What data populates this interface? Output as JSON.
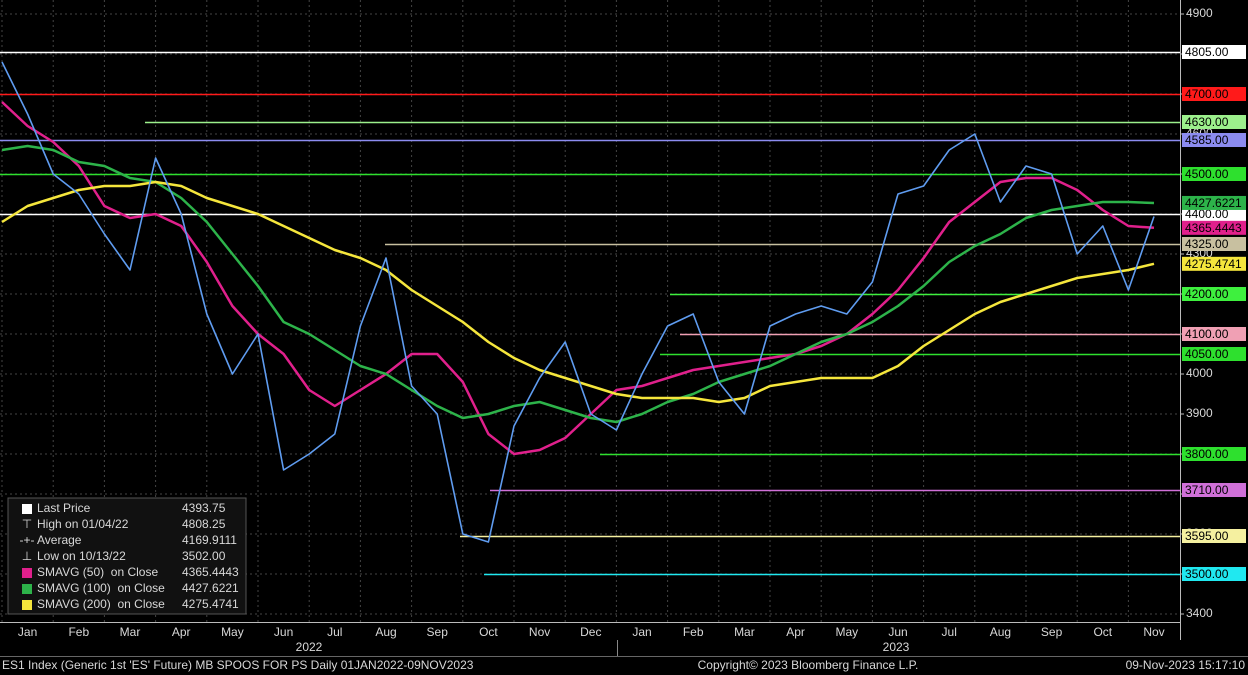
{
  "chart_data": {
    "type": "line",
    "footer_left": "ES1 Index (Generic 1st 'ES' Future) MB SPOOS FOR PS  Daily 01JAN2022-09NOV2023",
    "footer_center": "Copyright© 2023 Bloomberg Finance L.P.",
    "footer_right": "09-Nov-2023 15:17:10",
    "categories": [
      null,
      "Jan",
      null,
      "Feb",
      null,
      "Mar",
      null,
      "Apr",
      null,
      "May",
      null,
      "Jun",
      null,
      "Jul",
      null,
      "Aug",
      null,
      "Sep",
      null,
      "Oct",
      null,
      "Nov",
      null,
      "Dec",
      null,
      "Jan",
      null,
      "Feb",
      null,
      "Mar",
      null,
      "Apr",
      null,
      "May",
      null,
      "Jun",
      null,
      "Jul",
      null,
      "Aug",
      null,
      "Sep",
      null,
      "Oct",
      null,
      "Nov"
    ],
    "years": [
      "2022",
      "2023"
    ],
    "ylim": [
      3380,
      4935
    ],
    "yticks": [
      3400,
      3500,
      3600,
      3700,
      3800,
      3900,
      4000,
      4100,
      4200,
      4300,
      4400,
      4500,
      4600,
      4700,
      4800,
      4900
    ],
    "grid": true,
    "series": [
      {
        "name": "Last Price",
        "color": "#ffffff",
        "values": [
          4780,
          4650,
          4500,
          4450,
          4350,
          4260,
          4540,
          4400,
          4150,
          4000,
          4100,
          3760,
          3800,
          3850,
          4120,
          4290,
          3970,
          3900,
          3600,
          3580,
          3870,
          3990,
          4080,
          3900,
          3860,
          4000,
          4120,
          4150,
          3980,
          3900,
          4120,
          4150,
          4170,
          4150,
          4230,
          4450,
          4470,
          4560,
          4600,
          4430,
          4520,
          4500,
          4300,
          4370,
          4210,
          4393.75
        ]
      },
      {
        "name": "SMAVG (50)  on Close",
        "color": "#e0208c",
        "values": [
          4680,
          4620,
          4580,
          4520,
          4420,
          4390,
          4400,
          4370,
          4280,
          4170,
          4100,
          4050,
          3960,
          3920,
          3960,
          4000,
          4050,
          4050,
          3980,
          3850,
          3800,
          3810,
          3840,
          3900,
          3960,
          3970,
          3990,
          4010,
          4020,
          4030,
          4040,
          4050,
          4070,
          4100,
          4150,
          4210,
          4290,
          4380,
          4430,
          4480,
          4490,
          4490,
          4460,
          4410,
          4370,
          4365.4443
        ]
      },
      {
        "name": "SMAVG (100)  on Close",
        "color": "#2db34a",
        "values": [
          4560,
          4570,
          4560,
          4530,
          4520,
          4490,
          4480,
          4440,
          4380,
          4300,
          4220,
          4130,
          4100,
          4060,
          4020,
          4000,
          3960,
          3920,
          3890,
          3900,
          3920,
          3930,
          3910,
          3890,
          3880,
          3900,
          3930,
          3950,
          3980,
          4000,
          4020,
          4050,
          4080,
          4100,
          4130,
          4170,
          4220,
          4280,
          4320,
          4350,
          4390,
          4410,
          4420,
          4430,
          4430,
          4427.6221
        ]
      },
      {
        "name": "SMAVG (200)  on Close",
        "color": "#f5e63c",
        "values": [
          4380,
          4420,
          4440,
          4460,
          4470,
          4470,
          4480,
          4470,
          4440,
          4420,
          4400,
          4370,
          4340,
          4310,
          4290,
          4260,
          4210,
          4170,
          4130,
          4080,
          4040,
          4010,
          3990,
          3970,
          3950,
          3940,
          3940,
          3940,
          3930,
          3940,
          3970,
          3980,
          3990,
          3990,
          3990,
          4020,
          4070,
          4110,
          4150,
          4180,
          4200,
          4220,
          4240,
          4250,
          4260,
          4275.4741
        ]
      }
    ],
    "stats": [
      {
        "name": "High on 01/04/22",
        "value": 4808.25
      },
      {
        "name": "Average",
        "value": 4169.9111
      },
      {
        "name": "Low on 10/13/22",
        "value": 3502,
        "value_label": "3502.00"
      }
    ],
    "levels": [
      {
        "value": 4805,
        "label": "4805.00",
        "color": "#ffffff"
      },
      {
        "value": 4700,
        "label": "4700.00",
        "color": "#ff1a1a"
      },
      {
        "value": 4630,
        "label": "4630.00",
        "color": "#9cf08c"
      },
      {
        "value": 4585,
        "label": "4585.00",
        "color": "#8c8cf0"
      },
      {
        "value": 4500,
        "label": "4500.00",
        "color": "#2ee02e"
      },
      {
        "value": 4400,
        "label": "4400.00",
        "color": "#ffffff"
      },
      {
        "value": 4325,
        "label": "4325.00",
        "color": "#c8c0a0"
      },
      {
        "value": 4200,
        "label": "4200.00",
        "color": "#3ef03e"
      },
      {
        "value": 4100,
        "label": "4100.00",
        "color": "#f0a0b4"
      },
      {
        "value": 4050,
        "label": "4050.00",
        "color": "#2ee02e"
      },
      {
        "value": 3800,
        "label": "3800.00",
        "color": "#2ee02e"
      },
      {
        "value": 3710,
        "label": "3710.00",
        "color": "#d070d8"
      },
      {
        "value": 3595,
        "label": "3595.00",
        "color": "#f5f0a0"
      },
      {
        "value": 3500,
        "label": "3500.00",
        "color": "#20e8f0"
      }
    ]
  }
}
